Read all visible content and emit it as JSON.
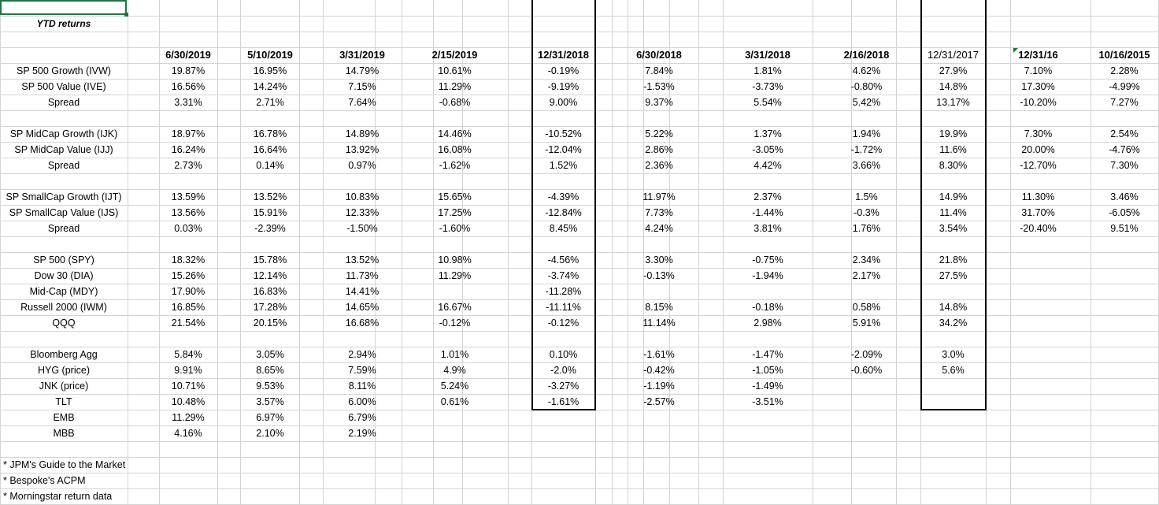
{
  "sheet": {
    "title": "YTD returns",
    "dates": [
      "6/30/2019",
      "5/10/2019",
      "3/31/2019",
      "2/15/2019",
      "12/31/2018",
      "6/30/2018",
      "3/31/2018",
      "2/16/2018",
      "12/31/2017",
      "12/31/16",
      "10/16/2015"
    ],
    "groups": [
      {
        "rows": [
          {
            "label": "SP 500 Growth (IVW)",
            "values": [
              "19.87%",
              "16.95%",
              "14.79%",
              "10.61%",
              "-0.19%",
              "7.84%",
              "1.81%",
              "4.62%",
              "27.9%",
              "7.10%",
              "2.28%"
            ]
          },
          {
            "label": "SP 500 Value (IVE)",
            "values": [
              "16.56%",
              "14.24%",
              "7.15%",
              "11.29%",
              "-9.19%",
              "-1.53%",
              "-3.73%",
              "-0.80%",
              "14.8%",
              "17.30%",
              "-4.99%"
            ]
          },
          {
            "label": "Spread",
            "values": [
              "3.31%",
              "2.71%",
              "7.64%",
              "-0.68%",
              "9.00%",
              "9.37%",
              "5.54%",
              "5.42%",
              "13.17%",
              "-10.20%",
              "7.27%"
            ]
          }
        ]
      },
      {
        "rows": [
          {
            "label": "SP MidCap Growth (IJK)",
            "values": [
              "18.97%",
              "16.78%",
              "14.89%",
              "14.46%",
              "-10.52%",
              "5.22%",
              "1.37%",
              "1.94%",
              "19.9%",
              "7.30%",
              "2.54%"
            ]
          },
          {
            "label": "SP MidCap Value (IJJ)",
            "values": [
              "16.24%",
              "16.64%",
              "13.92%",
              "16.08%",
              "-12.04%",
              "2.86%",
              "-3.05%",
              "-1.72%",
              "11.6%",
              "20.00%",
              "-4.76%"
            ]
          },
          {
            "label": "Spread",
            "values": [
              "2.73%",
              "0.14%",
              "0.97%",
              "-1.62%",
              "1.52%",
              "2.36%",
              "4.42%",
              "3.66%",
              "8.30%",
              "-12.70%",
              "7.30%"
            ]
          }
        ]
      },
      {
        "rows": [
          {
            "label": "SP SmallCap Growth (IJT)",
            "values": [
              "13.59%",
              "13.52%",
              "10.83%",
              "15.65%",
              "-4.39%",
              "11.97%",
              "2.37%",
              "1.5%",
              "14.9%",
              "11.30%",
              "3.46%"
            ]
          },
          {
            "label": "SP SmallCap Value (IJS)",
            "values": [
              "13.56%",
              "15.91%",
              "12.33%",
              "17.25%",
              "-12.84%",
              "7.73%",
              "-1.44%",
              "-0.3%",
              "11.4%",
              "31.70%",
              "-6.05%"
            ]
          },
          {
            "label": "Spread",
            "values": [
              "0.03%",
              "-2.39%",
              "-1.50%",
              "-1.60%",
              "8.45%",
              "4.24%",
              "3.81%",
              "1.76%",
              "3.54%",
              "-20.40%",
              "9.51%"
            ]
          }
        ]
      },
      {
        "rows": [
          {
            "label": "SP 500 (SPY)",
            "values": [
              "18.32%",
              "15.78%",
              "13.52%",
              "10.98%",
              "-4.56%",
              "3.30%",
              "-0.75%",
              "2.34%",
              "21.8%",
              "",
              ""
            ]
          },
          {
            "label": "Dow 30 (DIA)",
            "values": [
              "15.26%",
              "12.14%",
              "11.73%",
              "11.29%",
              "-3.74%",
              "-0.13%",
              "-1.94%",
              "2.17%",
              "27.5%",
              "",
              ""
            ]
          },
          {
            "label": "Mid-Cap (MDY)",
            "values": [
              "17.90%",
              "16.83%",
              "14.41%",
              "",
              "-11.28%",
              "",
              "",
              "",
              "",
              "",
              ""
            ]
          },
          {
            "label": "Russell 2000 (IWM)",
            "values": [
              "16.85%",
              "17.28%",
              "14.65%",
              "16.67%",
              "-11.11%",
              "8.15%",
              "-0.18%",
              "0.58%",
              "14.8%",
              "",
              ""
            ]
          },
          {
            "label": "QQQ",
            "values": [
              "21.54%",
              "20.15%",
              "16.68%",
              "-0.12%",
              "-0.12%",
              "11.14%",
              "2.98%",
              "5.91%",
              "34.2%",
              "",
              ""
            ]
          }
        ]
      },
      {
        "rows": [
          {
            "label": "Bloomberg Agg",
            "values": [
              "5.84%",
              "3.05%",
              "2.94%",
              "1.01%",
              "0.10%",
              "-1.61%",
              "-1.47%",
              "-2.09%",
              "3.0%",
              "",
              ""
            ]
          },
          {
            "label": "HYG (price)",
            "values": [
              "9.91%",
              "8.65%",
              "7.59%",
              "4.9%",
              "-2.0%",
              "-0.42%",
              "-1.05%",
              "-0.60%",
              "5.6%",
              "",
              ""
            ]
          },
          {
            "label": "JNK (price)",
            "values": [
              "10.71%",
              "9.53%",
              "8.11%",
              "5.24%",
              "-3.27%",
              "-1.19%",
              "-1.49%",
              "",
              "",
              "",
              ""
            ]
          },
          {
            "label": "TLT",
            "values": [
              "10.48%",
              "3.57%",
              "6.00%",
              "0.61%",
              "-1.61%",
              "-2.57%",
              "-3.51%",
              "",
              "",
              "",
              ""
            ]
          },
          {
            "label": "EMB",
            "values": [
              "11.29%",
              "6.97%",
              "6.79%",
              "",
              "",
              "",
              "",
              "",
              "",
              "",
              ""
            ]
          },
          {
            "label": "MBB",
            "values": [
              "4.16%",
              "2.10%",
              "2.19%",
              "",
              "",
              "",
              "",
              "",
              "",
              "",
              ""
            ]
          }
        ]
      }
    ],
    "notes": [
      "* JPM's Guide to the Market",
      "* Bespoke's ACPM",
      "* Morningstar return data"
    ]
  },
  "colors": {
    "gridline": "#d4d4d4",
    "selection": "#217346",
    "border": "#000000",
    "error_indicator": "#0a7b32"
  }
}
